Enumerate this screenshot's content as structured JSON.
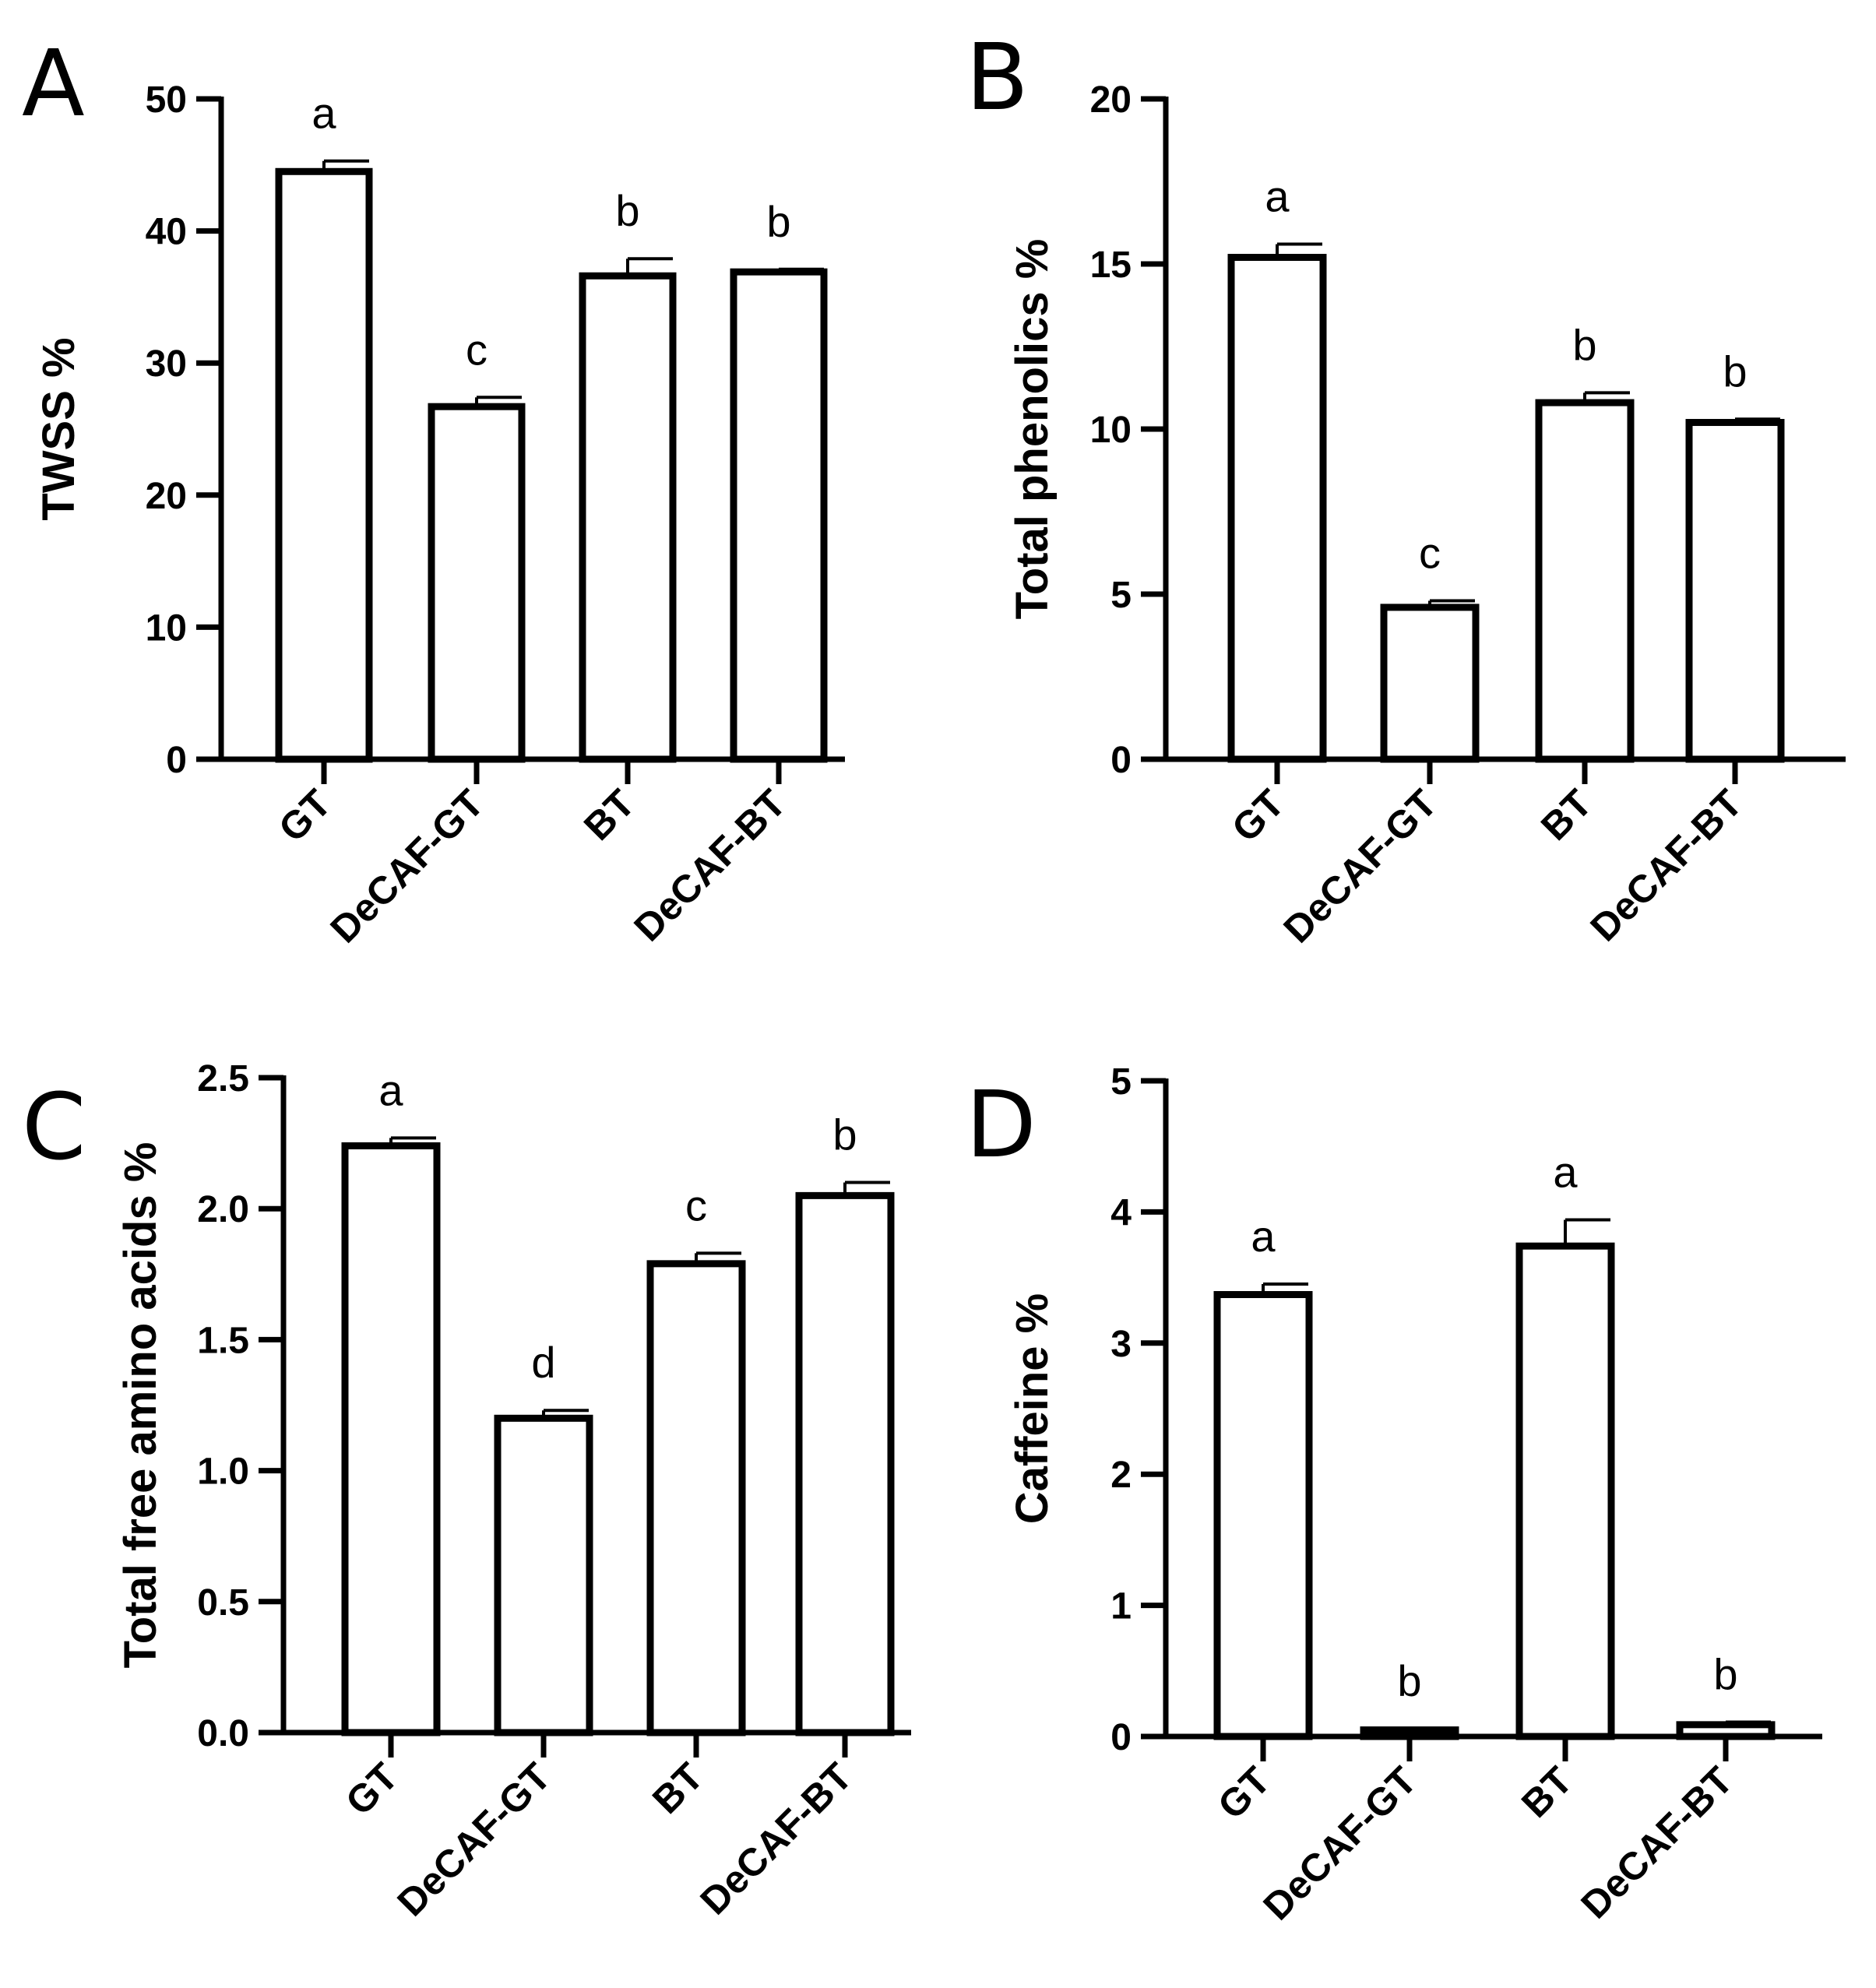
{
  "chart_data": [
    {
      "panel": "A",
      "type": "bar",
      "categories": [
        "GT",
        "DeCAF-GT",
        "BT",
        "DeCAF-BT"
      ],
      "values": [
        44.5,
        26.7,
        36.6,
        36.9
      ],
      "errors": [
        0.8,
        0.7,
        1.3,
        0.2
      ],
      "significance": [
        "a",
        "c",
        "b",
        "b"
      ],
      "ylabel": "TWSS %",
      "ylim": [
        0,
        50
      ],
      "yticks": [
        0,
        10,
        20,
        30,
        40,
        50
      ],
      "ytick_labels": [
        "0",
        "10",
        "20",
        "30",
        "40",
        "50"
      ]
    },
    {
      "panel": "B",
      "type": "bar",
      "categories": [
        "GT",
        "DeCAF-GT",
        "BT",
        "DeCAF-BT"
      ],
      "values": [
        15.2,
        4.6,
        10.8,
        10.2
      ],
      "errors": [
        0.4,
        0.2,
        0.3,
        0.1
      ],
      "significance": [
        "a",
        "c",
        "b",
        "b"
      ],
      "ylabel": "Total phenolics %",
      "ylim": [
        0,
        20
      ],
      "yticks": [
        0,
        5,
        10,
        15,
        20
      ],
      "ytick_labels": [
        "0",
        "5",
        "10",
        "15",
        "20"
      ]
    },
    {
      "panel": "C",
      "type": "bar",
      "categories": [
        "GT",
        "DeCAF-GT",
        "BT",
        "DeCAF-BT"
      ],
      "values": [
        2.24,
        1.2,
        1.79,
        2.05
      ],
      "errors": [
        0.03,
        0.03,
        0.04,
        0.05
      ],
      "significance": [
        "a",
        "d",
        "c",
        "b"
      ],
      "ylabel": "Total free amino acids %",
      "ylim": [
        0,
        2.5
      ],
      "yticks": [
        0,
        0.5,
        1,
        1.5,
        2,
        2.5
      ],
      "ytick_labels": [
        "0.0",
        "0.5",
        "1.0",
        "1.5",
        "2.0",
        "2.5"
      ]
    },
    {
      "panel": "D",
      "type": "bar",
      "categories": [
        "GT",
        "DeCAF-GT",
        "BT",
        "DeCAF-BT"
      ],
      "values": [
        3.37,
        0.05,
        3.74,
        0.09
      ],
      "errors": [
        0.08,
        0.01,
        0.2,
        0.02
      ],
      "significance": [
        "a",
        "b",
        "a",
        "b"
      ],
      "ylabel": "Caffeine %",
      "ylim": [
        0,
        5
      ],
      "yticks": [
        0,
        1,
        2,
        3,
        4,
        5
      ],
      "ytick_labels": [
        "0",
        "1",
        "2",
        "3",
        "4",
        "5"
      ]
    }
  ]
}
